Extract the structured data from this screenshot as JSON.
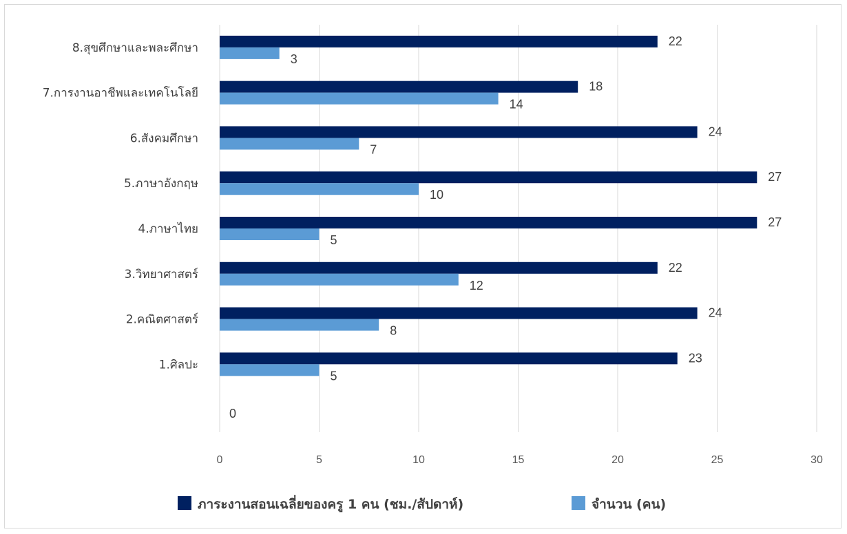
{
  "chart_data": {
    "type": "bar",
    "orientation": "horizontal",
    "categories": [
      "1.ศิลปะ",
      "2.คณิตศาสตร์",
      "3.วิทยาศาสตร์",
      "4.ภาษาไทย",
      "5.ภาษาอังกฤษ",
      "6.สังคมศึกษา",
      "7.การงานอาชีพและเทคโนโลยี",
      "8.สุขศึกษาและพละศึกษา"
    ],
    "extra_category_label": "0",
    "series": [
      {
        "name": "ภาระงานสอนเฉลี่ยของครู 1 คน (ชม./สัปดาห์)",
        "color": "#002060",
        "values": [
          23,
          24,
          22,
          27,
          27,
          24,
          18,
          22
        ]
      },
      {
        "name": "จำนวน (คน)",
        "color": "#5b9bd5",
        "values": [
          5,
          8,
          12,
          5,
          10,
          7,
          14,
          3
        ]
      }
    ],
    "xlim": [
      0,
      30
    ],
    "xticks": [
      0,
      5,
      10,
      15,
      20,
      25,
      30
    ],
    "grid": true,
    "legend_position": "bottom",
    "data_labels": true
  }
}
